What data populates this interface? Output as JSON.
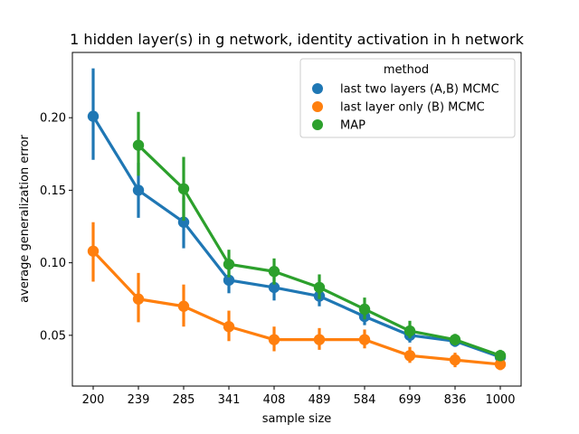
{
  "chart_data": {
    "type": "line",
    "title": "1 hidden layer(s) in g network, identity activation in h network",
    "xlabel": "sample size",
    "ylabel": "average generalization error",
    "categories": [
      "200",
      "239",
      "285",
      "341",
      "408",
      "489",
      "584",
      "699",
      "836",
      "1000"
    ],
    "ylim": [
      0.015,
      0.245
    ],
    "yticks": [
      0.05,
      0.1,
      0.15,
      0.2
    ],
    "ytick_labels": [
      "0.05",
      "0.10",
      "0.15",
      "0.20"
    ],
    "legend": {
      "title": "method",
      "placement": "top-right"
    },
    "series": [
      {
        "name": "last two layers (A,B) MCMC",
        "color": "#1f77b4",
        "values": [
          0.201,
          0.15,
          0.128,
          0.088,
          0.083,
          0.077,
          0.063,
          0.05,
          0.046,
          0.035
        ],
        "lower": [
          0.171,
          0.131,
          0.11,
          0.079,
          0.074,
          0.07,
          0.057,
          0.045,
          0.042,
          0.031
        ],
        "upper": [
          0.234,
          0.169,
          0.145,
          0.097,
          0.092,
          0.085,
          0.069,
          0.055,
          0.05,
          0.039
        ]
      },
      {
        "name": "last layer only (B) MCMC",
        "color": "#ff7f0e",
        "values": [
          0.108,
          0.075,
          0.07,
          0.056,
          0.047,
          0.047,
          0.047,
          0.036,
          0.033,
          0.03
        ],
        "lower": [
          0.087,
          0.059,
          0.056,
          0.046,
          0.039,
          0.04,
          0.041,
          0.031,
          0.028,
          0.026
        ],
        "upper": [
          0.128,
          0.093,
          0.085,
          0.067,
          0.056,
          0.055,
          0.054,
          0.042,
          0.038,
          0.034
        ]
      },
      {
        "name": "MAP",
        "color": "#2ca02c",
        "values": [
          null,
          0.181,
          0.151,
          0.099,
          0.094,
          0.083,
          0.068,
          0.053,
          0.047,
          0.036
        ],
        "lower": [
          null,
          0.16,
          0.129,
          0.09,
          0.085,
          0.075,
          0.061,
          0.048,
          0.043,
          0.033
        ],
        "upper": [
          null,
          0.204,
          0.173,
          0.109,
          0.103,
          0.092,
          0.076,
          0.06,
          0.051,
          0.04
        ]
      }
    ]
  }
}
